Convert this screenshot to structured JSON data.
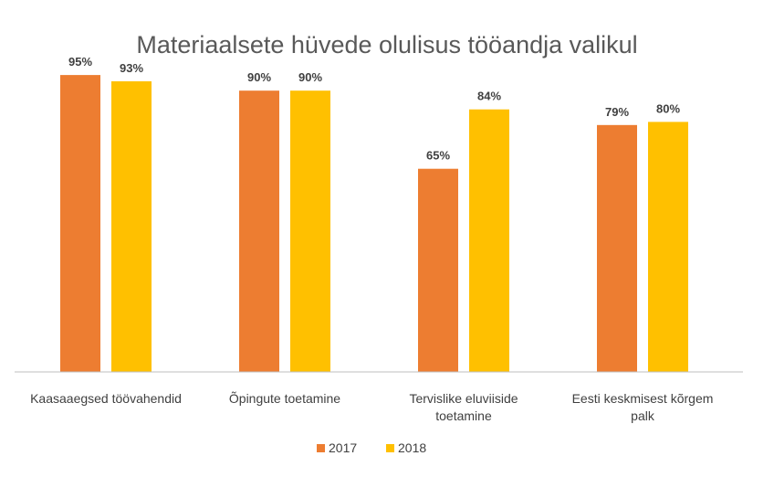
{
  "chart_data": {
    "type": "bar",
    "title": "Materiaalsete hüvede olulisus tööandja valikul",
    "categories": [
      [
        "Kaasaaegsed töövahendid"
      ],
      [
        "Õpingute toetamine"
      ],
      [
        "Tervislike eluviiside",
        "toetamine"
      ],
      [
        "Eesti keskmisest kõrgem",
        "palk"
      ]
    ],
    "series": [
      {
        "name": "2017",
        "color": "#ED7D31",
        "values": [
          95,
          90,
          65,
          79
        ],
        "labels": [
          "95%",
          "90%",
          "65%",
          "79%"
        ]
      },
      {
        "name": "2018",
        "color": "#FFC000",
        "values": [
          93,
          90,
          84,
          80
        ],
        "labels": [
          "93%",
          "90%",
          "84%",
          "80%"
        ]
      }
    ],
    "ylim": [
      0,
      100
    ],
    "grid": false,
    "legend_position": "bottom",
    "axis_color": "#BFBFBF"
  }
}
